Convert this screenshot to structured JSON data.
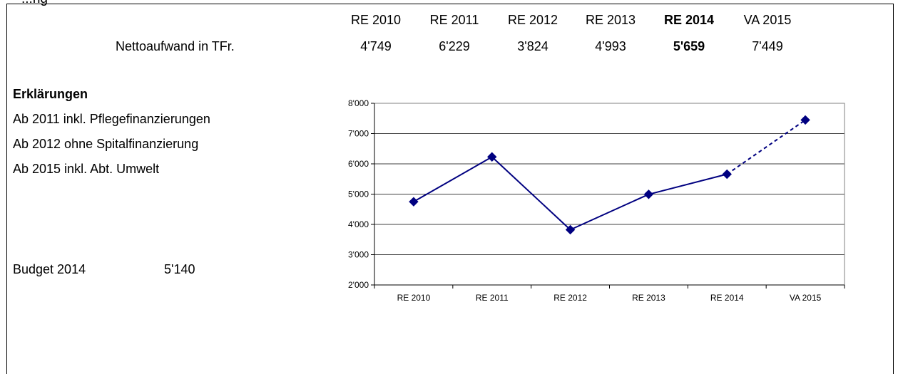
{
  "header": {
    "cut_title": "...ng",
    "row_label": "Nettoaufwand in TFr.",
    "columns": [
      {
        "label": "RE 2010",
        "value": "4'749",
        "bold": false
      },
      {
        "label": "RE 2011",
        "value": "6'229",
        "bold": false
      },
      {
        "label": "RE 2012",
        "value": "3'824",
        "bold": false
      },
      {
        "label": "RE 2013",
        "value": "4'993",
        "bold": false
      },
      {
        "label": "RE 2014",
        "value": "5'659",
        "bold": true
      },
      {
        "label": "VA 2015",
        "value": "7'449",
        "bold": false
      }
    ]
  },
  "explanations": {
    "title": "Erklärungen",
    "lines": [
      "Ab 2011 inkl. Pflegefinanzierungen",
      "Ab 2012 ohne Spitalfinanzierung",
      "Ab 2015 inkl. Abt. Umwelt"
    ]
  },
  "budget": {
    "label": "Budget 2014",
    "value": "5'140"
  },
  "chart_data": {
    "type": "line",
    "categories": [
      "RE 2010",
      "RE 2011",
      "RE 2012",
      "RE 2013",
      "RE 2014",
      "VA 2015"
    ],
    "series": [
      {
        "values": [
          4749,
          6229,
          3824,
          4993,
          5659,
          7449
        ],
        "color": "#000080",
        "marker": "diamond",
        "dashed_from_index": 4
      }
    ],
    "ylim": [
      2000,
      8000
    ],
    "yticks": [
      2000,
      3000,
      4000,
      5000,
      6000,
      7000,
      8000
    ],
    "ytick_labels": [
      "2'000",
      "3'000",
      "4'000",
      "5'000",
      "6'000",
      "7'000",
      "8'000"
    ],
    "grid": true,
    "title": "",
    "xlabel": "",
    "ylabel": ""
  }
}
